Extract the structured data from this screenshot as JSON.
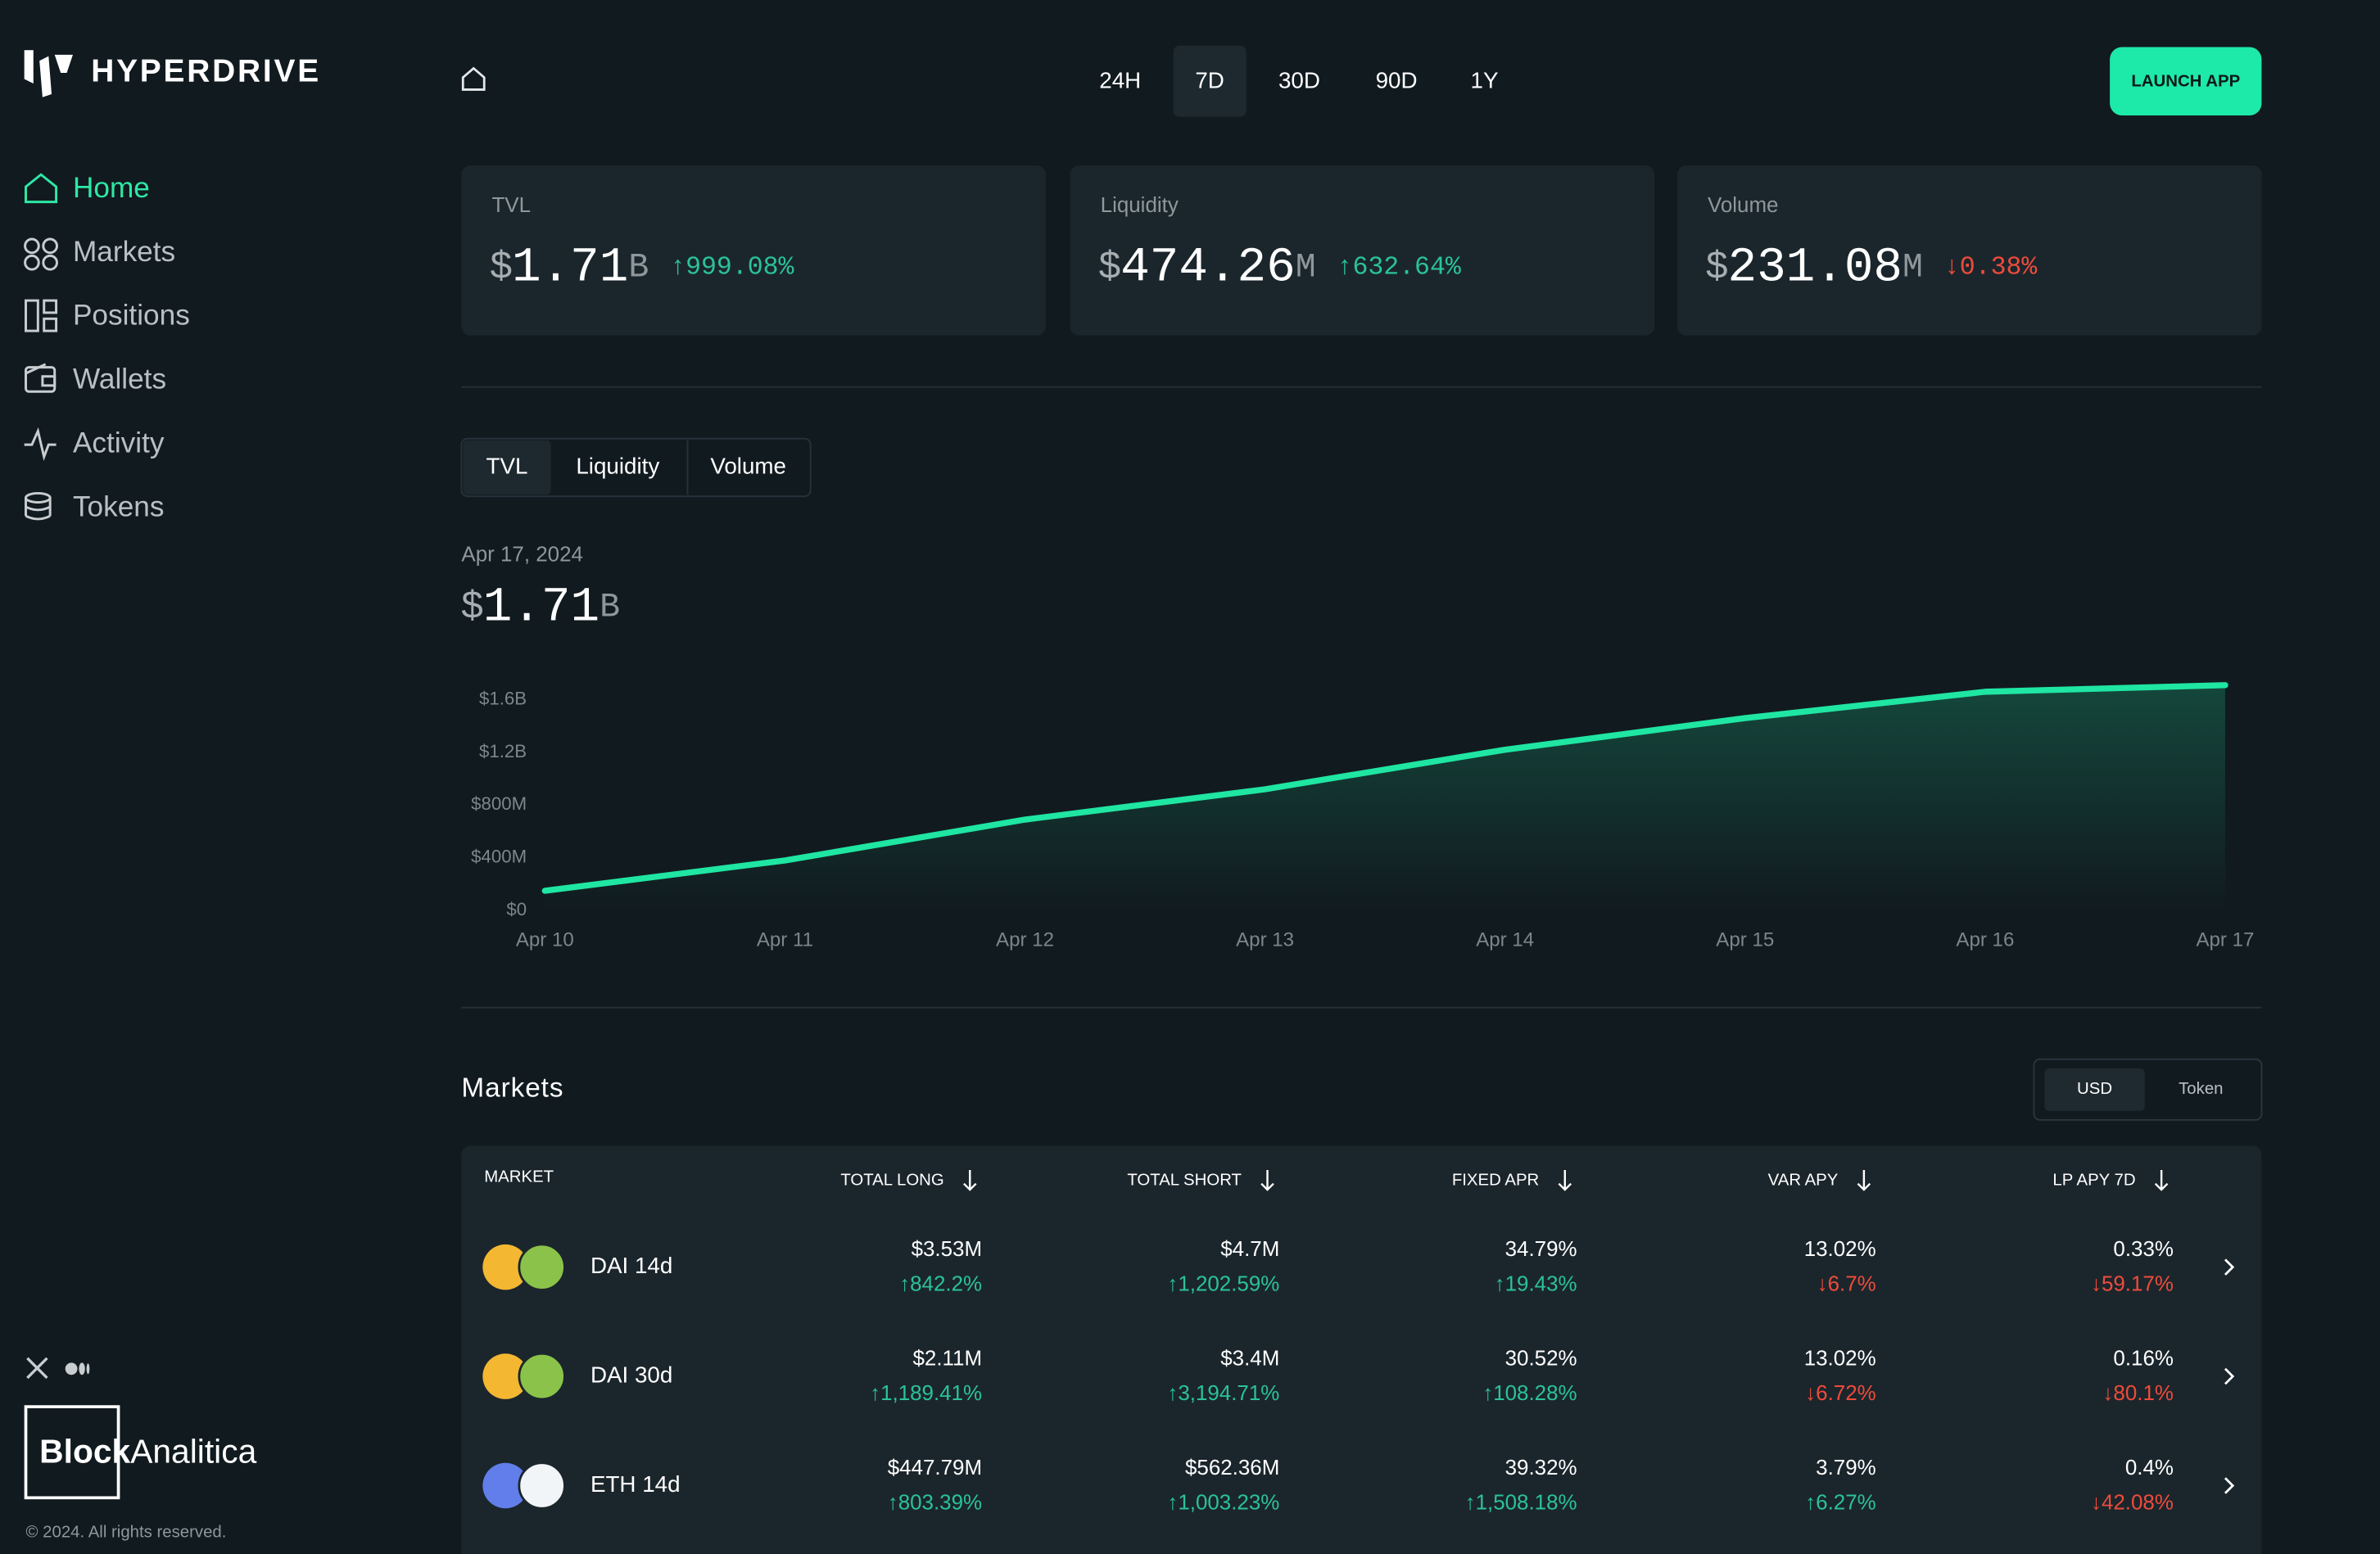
{
  "brand": "HYPERDRIVE",
  "nav": [
    "Home",
    "Markets",
    "Positions",
    "Wallets",
    "Activity",
    "Tokens"
  ],
  "ranges": [
    "24H",
    "7D",
    "30D",
    "90D",
    "1Y"
  ],
  "launch": "LAUNCH APP",
  "stats": [
    {
      "label": "TVL",
      "currency": "$",
      "amount": "1.71",
      "unit": "B",
      "change": "↑999.08%"
    },
    {
      "label": "Liquidity",
      "currency": "$",
      "amount": "474.26",
      "unit": "M",
      "change": "↑632.64%"
    },
    {
      "label": "Volume",
      "currency": "$",
      "amount": "231.08",
      "unit": "M",
      "change": "↓0.38%"
    }
  ],
  "tabs": [
    "TVL",
    "Liquidity",
    "Volume"
  ],
  "chart_data": {
    "type": "area",
    "subtitle": "Apr 17, 2024",
    "title": {
      "currency": "$",
      "amount": "1.71",
      "unit": "B"
    },
    "categories": [
      "Apr 10",
      "Apr 11",
      "Apr 12",
      "Apr 13",
      "Apr 14",
      "Apr 15",
      "Apr 16",
      "Apr 17"
    ],
    "values": [
      150000000,
      380000000,
      690000000,
      920000000,
      1220000000,
      1460000000,
      1660000000,
      1710000000
    ],
    "color": "#1fe6a2",
    "ylim": [
      0,
      1750000000
    ],
    "yticks": [
      {
        "value": 0,
        "label": "$0"
      },
      {
        "value": 400000000,
        "label": "$400M"
      },
      {
        "value": 800000000,
        "label": "$800M"
      },
      {
        "value": 1200000000,
        "label": "$1.2B"
      },
      {
        "value": 1600000000,
        "label": "$1.6B"
      }
    ],
    "grid": false
  },
  "markets": {
    "title": "Markets",
    "toggle": [
      "USD",
      "Token"
    ],
    "columns": [
      "MARKET",
      "TOTAL LONG",
      "TOTAL SHORT",
      "FIXED APR",
      "VAR APY",
      "LP APY 7D"
    ],
    "rows": [
      {
        "name": "DAI 14d",
        "cells": [
          [
            "$3.53M",
            "↑842.2%"
          ],
          [
            "$4.7M",
            "↑1,202.59%"
          ],
          [
            "34.79%",
            "↑19.43%"
          ],
          [
            "13.02%",
            "↓6.7%"
          ],
          [
            "0.33%",
            "↓59.17%"
          ]
        ]
      },
      {
        "name": "DAI 30d",
        "cells": [
          [
            "$2.11M",
            "↑1,189.41%"
          ],
          [
            "$3.4M",
            "↑3,194.71%"
          ],
          [
            "30.52%",
            "↑108.28%"
          ],
          [
            "13.02%",
            "↓6.72%"
          ],
          [
            "0.16%",
            "↓80.1%"
          ]
        ]
      },
      {
        "name": "ETH 14d",
        "cells": [
          [
            "$447.79M",
            "↑803.39%"
          ],
          [
            "$562.36M",
            "↑1,003.23%"
          ],
          [
            "39.32%",
            "↑1,508.18%"
          ],
          [
            "3.79%",
            "↑6.27%"
          ],
          [
            "0.4%",
            "↓42.08%"
          ]
        ]
      }
    ]
  },
  "footer": {
    "brand_bold": "Block",
    "brand": "Analitica",
    "copyright": "© 2024. All rights reserved."
  }
}
